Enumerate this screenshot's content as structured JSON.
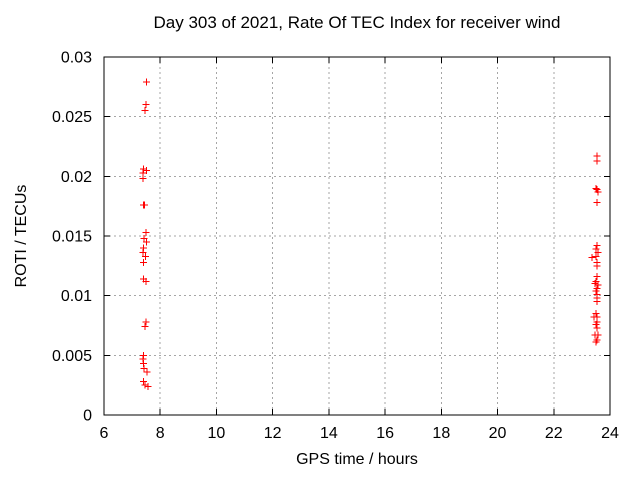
{
  "chart_data": {
    "type": "scatter",
    "title": "Day 303 of 2021, Rate Of TEC Index for receiver wind",
    "xlabel": "GPS time / hours",
    "ylabel": "ROTI / TECUs",
    "xlim": [
      6,
      24
    ],
    "ylim": [
      0,
      0.03
    ],
    "x_ticks": [
      6,
      8,
      10,
      12,
      14,
      16,
      18,
      20,
      22,
      24
    ],
    "x_tick_labels": [
      "6",
      "8",
      "10",
      "12",
      "14",
      "16",
      "18",
      "20",
      "22",
      "24"
    ],
    "y_ticks": [
      0,
      0.005,
      0.01,
      0.015,
      0.02,
      0.025,
      0.03
    ],
    "y_tick_labels": [
      "0",
      "0.005",
      "0.01",
      "0.015",
      "0.02",
      "0.025",
      "0.03"
    ],
    "grid": true,
    "legend_position": "none",
    "marker_shape": "plus",
    "marker_color": "#ff0000",
    "grid_color": "#a6a6a6",
    "border_color": "#000000",
    "series": [
      {
        "name": "ROTI",
        "points": [
          [
            7.52,
            0.0279
          ],
          [
            7.49,
            0.026
          ],
          [
            7.45,
            0.0255
          ],
          [
            7.41,
            0.0206
          ],
          [
            7.51,
            0.0205
          ],
          [
            7.39,
            0.0203
          ],
          [
            7.38,
            0.0198
          ],
          [
            7.4,
            0.0176
          ],
          [
            7.44,
            0.0176
          ],
          [
            7.49,
            0.0153
          ],
          [
            7.43,
            0.0148
          ],
          [
            7.51,
            0.0145
          ],
          [
            7.4,
            0.014
          ],
          [
            7.39,
            0.0136
          ],
          [
            7.47,
            0.0133
          ],
          [
            7.4,
            0.0128
          ],
          [
            7.41,
            0.0114
          ],
          [
            7.49,
            0.0112
          ],
          [
            7.5,
            0.0078
          ],
          [
            7.46,
            0.0074
          ],
          [
            7.4,
            0.005
          ],
          [
            7.38,
            0.0047
          ],
          [
            7.4,
            0.0043
          ],
          [
            7.43,
            0.0039
          ],
          [
            7.53,
            0.0036
          ],
          [
            7.4,
            0.0028
          ],
          [
            7.46,
            0.0025
          ],
          [
            7.57,
            0.0024
          ],
          [
            23.54,
            0.0217
          ],
          [
            23.54,
            0.0213
          ],
          [
            23.5,
            0.019
          ],
          [
            23.54,
            0.0189
          ],
          [
            23.57,
            0.0187
          ],
          [
            23.54,
            0.0178
          ],
          [
            23.54,
            0.0142
          ],
          [
            23.5,
            0.0139
          ],
          [
            23.57,
            0.0136
          ],
          [
            23.5,
            0.0133
          ],
          [
            23.36,
            0.0132
          ],
          [
            23.54,
            0.0128
          ],
          [
            23.54,
            0.0125
          ],
          [
            23.54,
            0.0116
          ],
          [
            23.5,
            0.0112
          ],
          [
            23.46,
            0.011
          ],
          [
            23.57,
            0.0109
          ],
          [
            23.54,
            0.0106
          ],
          [
            23.5,
            0.0104
          ],
          [
            23.54,
            0.0101
          ],
          [
            23.54,
            0.0098
          ],
          [
            23.54,
            0.0095
          ],
          [
            23.5,
            0.0085
          ],
          [
            23.54,
            0.0082
          ],
          [
            23.43,
            0.0082
          ],
          [
            23.54,
            0.0078
          ],
          [
            23.5,
            0.0076
          ],
          [
            23.54,
            0.0073
          ],
          [
            23.46,
            0.0067
          ],
          [
            23.57,
            0.0067
          ],
          [
            23.54,
            0.0063
          ],
          [
            23.5,
            0.0061
          ]
        ]
      }
    ]
  }
}
